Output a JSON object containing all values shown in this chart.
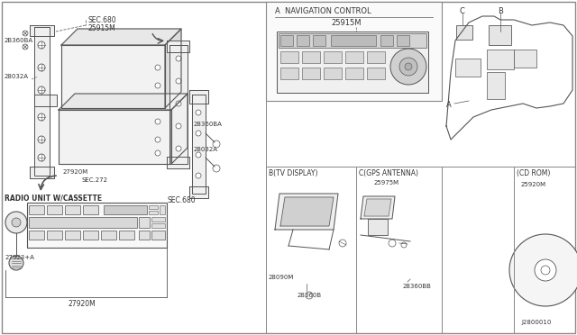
{
  "bg_color": "#ffffff",
  "line_color": "#555555",
  "text_color": "#333333",
  "labels": {
    "sec680_top": "SEC.680",
    "part25915M_top": "25915M",
    "part2B360BA": "2B360BA",
    "part28032A_left": "28032A",
    "part27920M_left": "27920M",
    "sec272": "SEC.272",
    "part28360BA": "28360BA",
    "part28032A_right": "28032A",
    "sec680_bottom": "SEC.680",
    "radio_label": "RADIO UNIT W/CASSETTE",
    "part27923A": "27923+A",
    "part27920M_bottom": "27920M",
    "nav_label": "A  NAVIGATION CONTROL",
    "nav_part": "25915M",
    "label_B_tv": "B(TV DISPLAY)",
    "part28090M": "28090M",
    "part28360B": "28360B",
    "label_C_gps": "C(GPS ANTENNA)",
    "part25975M": "25975M",
    "part28360BB": "28360BB",
    "label_CD": "(CD ROM)",
    "part25920M": "25920M",
    "part_J": "J2800010",
    "label_A": "A",
    "label_B": "B",
    "label_C": "C"
  }
}
